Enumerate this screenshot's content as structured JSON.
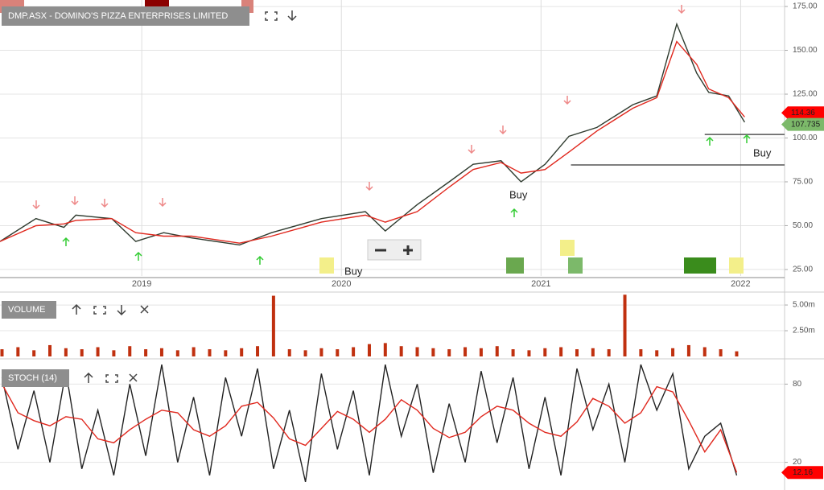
{
  "chart_data": [
    {
      "type": "line",
      "title": "DMP.ASX - DOMINO'S PIZZA ENTERPRISES LIMITED",
      "x": [
        2018.29,
        2018.47,
        2018.61,
        2018.67,
        2018.85,
        2018.97,
        2019.11,
        2019.25,
        2019.49,
        2019.65,
        2019.9,
        2020.12,
        2020.22,
        2020.38,
        2020.54,
        2020.66,
        2020.8,
        2020.9,
        2021.02,
        2021.14,
        2021.28,
        2021.46,
        2021.58,
        2021.68,
        2021.78,
        2021.84,
        2021.94,
        2022.02
      ],
      "series": [
        {
          "color": "#2f3b2f",
          "values": [
            41,
            54,
            49,
            56,
            54,
            41,
            46,
            43,
            39,
            46,
            54,
            58,
            47,
            62,
            75,
            85,
            87,
            75,
            85,
            101,
            106,
            119,
            124,
            165,
            137,
            126,
            124,
            109
          ]
        },
        {
          "color": "#e0281e",
          "values": [
            41,
            50,
            51,
            53,
            54,
            46,
            44,
            44,
            40,
            44,
            52,
            56,
            52,
            58,
            72,
            82,
            86,
            80,
            82,
            92,
            104,
            117,
            123,
            155,
            142,
            128,
            123,
            112
          ]
        }
      ],
      "xlim": [
        2018.29,
        2022.22
      ],
      "xticks": [
        2019,
        2020,
        2021,
        2022
      ],
      "ylim": [
        21.3,
        178.7
      ],
      "yticks": [
        {
          "value": 25,
          "label": "25.00"
        },
        {
          "value": 50,
          "label": "50.00"
        },
        {
          "value": 75,
          "label": "75.00"
        },
        {
          "value": 100,
          "label": "100.00"
        },
        {
          "value": 125,
          "label": "125.00"
        },
        {
          "value": 150,
          "label": "150.00"
        },
        {
          "value": 175,
          "label": "175.00"
        }
      ],
      "grid": true,
      "price_labels": [
        {
          "value": 114.36,
          "color": "#ff0000"
        },
        {
          "value": 107.735,
          "color": "#7cb96a"
        }
      ],
      "levels": [
        {
          "value": 102,
          "from": 2021.82
        },
        {
          "value": 84.6,
          "from": 2021.15
        }
      ],
      "annotations": [
        "Buy",
        "Buy",
        "Buy"
      ]
    },
    {
      "type": "bar",
      "title": "VOLUME",
      "x": [
        2018.3,
        2018.38,
        2018.46,
        2018.54,
        2018.62,
        2018.7,
        2018.78,
        2018.86,
        2018.94,
        2019.02,
        2019.1,
        2019.18,
        2019.26,
        2019.34,
        2019.42,
        2019.5,
        2019.58,
        2019.66,
        2019.74,
        2019.82,
        2019.9,
        2019.98,
        2020.06,
        2020.14,
        2020.22,
        2020.3,
        2020.38,
        2020.46,
        2020.54,
        2020.62,
        2020.7,
        2020.78,
        2020.86,
        2020.94,
        2021.02,
        2021.1,
        2021.18,
        2021.26,
        2021.34,
        2021.42,
        2021.5,
        2021.58,
        2021.66,
        2021.74,
        2021.82,
        2021.9,
        2021.98
      ],
      "color": "#c0300f",
      "values": [
        700000,
        900000,
        600000,
        1100000,
        800000,
        700000,
        900000,
        600000,
        1000000,
        700000,
        800000,
        600000,
        900000,
        700000,
        600000,
        800000,
        1000000,
        5900000,
        700000,
        600000,
        800000,
        700000,
        900000,
        1200000,
        1300000,
        1000000,
        900000,
        800000,
        700000,
        900000,
        800000,
        1000000,
        700000,
        600000,
        800000,
        900000,
        700000,
        800000,
        700000,
        6000000,
        700000,
        600000,
        800000,
        1100000,
        900000,
        700000,
        500000
      ],
      "xlim": [
        2018.29,
        2022.22
      ],
      "ylim": [
        0,
        6100000
      ],
      "yticks": [
        {
          "value": 2500000,
          "label": "2.50m"
        },
        {
          "value": 5000000,
          "label": "5.00m"
        }
      ]
    },
    {
      "type": "line",
      "title": "STOCH (14)",
      "x": [
        2018.3,
        2018.38,
        2018.46,
        2018.54,
        2018.62,
        2018.7,
        2018.78,
        2018.86,
        2018.94,
        2019.02,
        2019.1,
        2019.18,
        2019.26,
        2019.34,
        2019.42,
        2019.5,
        2019.58,
        2019.66,
        2019.74,
        2019.82,
        2019.9,
        2019.98,
        2020.06,
        2020.14,
        2020.22,
        2020.3,
        2020.38,
        2020.46,
        2020.54,
        2020.62,
        2020.7,
        2020.78,
        2020.86,
        2020.94,
        2021.02,
        2021.1,
        2021.18,
        2021.26,
        2021.34,
        2021.42,
        2021.5,
        2021.58,
        2021.66,
        2021.74,
        2021.82,
        2021.9,
        2021.98
      ],
      "series": [
        {
          "color": "#222222",
          "values": [
            85,
            30,
            75,
            20,
            90,
            15,
            60,
            10,
            80,
            25,
            95,
            20,
            70,
            10,
            85,
            40,
            92,
            15,
            60,
            5,
            88,
            30,
            75,
            10,
            95,
            40,
            80,
            12,
            65,
            20,
            90,
            35,
            85,
            15,
            70,
            10,
            92,
            45,
            80,
            20,
            95,
            60,
            88,
            15,
            40,
            50,
            10
          ]
        },
        {
          "color": "#e0281e",
          "values": [
            80,
            58,
            52,
            48,
            55,
            53,
            38,
            35,
            45,
            53,
            60,
            58,
            45,
            40,
            48,
            63,
            66,
            54,
            38,
            33,
            46,
            59,
            53,
            43,
            53,
            68,
            60,
            46,
            39,
            43,
            55,
            63,
            60,
            50,
            43,
            40,
            51,
            69,
            63,
            50,
            58,
            78,
            74,
            52,
            28,
            45,
            12.16
          ]
        }
      ],
      "xlim": [
        2018.29,
        2022.22
      ],
      "ylim": [
        0,
        100
      ],
      "yticks": [
        20,
        80
      ]
    }
  ]
}
